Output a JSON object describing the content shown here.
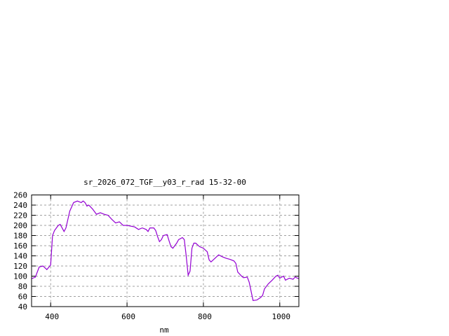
{
  "chart_data": {
    "type": "line",
    "title": "sr_2026_072_TGF__y03_r_rad 15-32-00",
    "xlabel": "nm",
    "ylabel": "",
    "xlim": [
      350,
      1050
    ],
    "ylim": [
      40,
      260
    ],
    "xticks": [
      400,
      600,
      800,
      1000
    ],
    "yticks": [
      40,
      60,
      80,
      100,
      120,
      140,
      160,
      180,
      200,
      220,
      240,
      260
    ],
    "grid": true,
    "line_color": "#9400d3",
    "series": [
      {
        "x": [
          350,
          360,
          370,
          380,
          390,
          400,
          405,
          410,
          420,
          425,
          435,
          440,
          450,
          460,
          470,
          480,
          485,
          490,
          495,
          500,
          510,
          520,
          530,
          540,
          550,
          560,
          570,
          580,
          590,
          600,
          620,
          630,
          640,
          650,
          655,
          660,
          670,
          675,
          680,
          685,
          690,
          695,
          705,
          710,
          715,
          720,
          730,
          735,
          745,
          750,
          755,
          760,
          765,
          770,
          775,
          780,
          790,
          800,
          810,
          815,
          820,
          830,
          840,
          850,
          860,
          870,
          880,
          885,
          890,
          900,
          905,
          915,
          920,
          930,
          940,
          950,
          955,
          960,
          970,
          980,
          990,
          995,
          1000,
          1005,
          1010,
          1015,
          1025,
          1035,
          1040,
          1050
        ],
        "y": [
          95,
          98,
          118,
          120,
          113,
          122,
          180,
          190,
          200,
          202,
          188,
          195,
          228,
          245,
          248,
          245,
          248,
          245,
          238,
          240,
          232,
          222,
          225,
          222,
          220,
          212,
          205,
          207,
          200,
          200,
          197,
          192,
          195,
          192,
          188,
          195,
          195,
          190,
          178,
          168,
          172,
          180,
          182,
          170,
          158,
          155,
          165,
          172,
          176,
          172,
          140,
          102,
          110,
          155,
          165,
          165,
          158,
          155,
          148,
          132,
          128,
          135,
          142,
          138,
          135,
          133,
          130,
          125,
          108,
          100,
          97,
          98,
          88,
          52,
          53,
          58,
          62,
          75,
          85,
          92,
          100,
          102,
          96,
          98,
          100,
          92,
          96,
          94,
          98,
          95
        ]
      }
    ]
  }
}
